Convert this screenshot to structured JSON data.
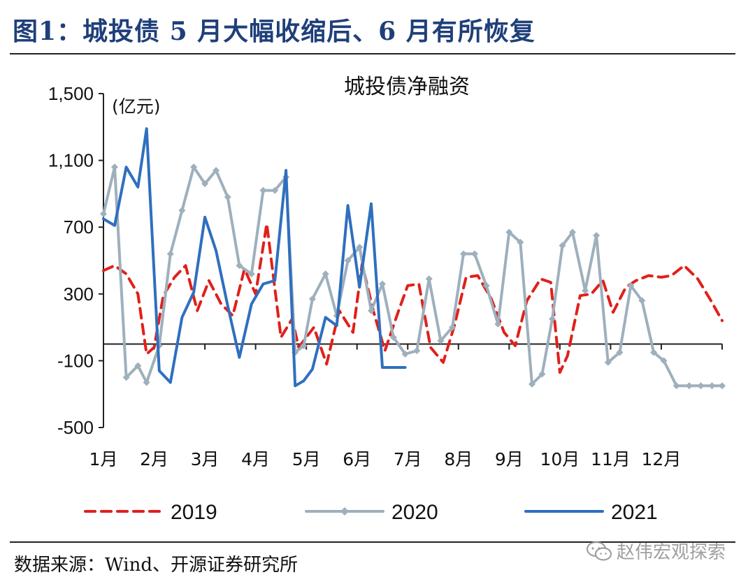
{
  "header": {
    "figure_title": "图1：城投债 5 月大幅收缩后、6 月有所恢复"
  },
  "footer": {
    "source": "数据来源：Wind、开源证券研究所",
    "watermark": "赵伟宏观探索"
  },
  "chart_data": {
    "type": "line",
    "title": "城投债净融资",
    "unit": "(亿元)",
    "ylim": [
      -500,
      1500
    ],
    "yticks": [
      -500,
      -100,
      300,
      700,
      1100,
      1500
    ],
    "ytick_labels": [
      "-500",
      "-100",
      "300",
      "700",
      "1,100",
      "1,500"
    ],
    "xlim": [
      1,
      13.2
    ],
    "xticks": [
      {
        "pos": 1,
        "label": "1月"
      },
      {
        "pos": 2,
        "label": "2月"
      },
      {
        "pos": 3,
        "label": "3月"
      },
      {
        "pos": 4,
        "label": "4月"
      },
      {
        "pos": 5,
        "label": "5月"
      },
      {
        "pos": 6,
        "label": "6月"
      },
      {
        "pos": 7,
        "label": "7月"
      },
      {
        "pos": 8,
        "label": "8月"
      },
      {
        "pos": 9,
        "label": "9月"
      },
      {
        "pos": 10,
        "label": "10月"
      },
      {
        "pos": 11,
        "label": "11月"
      },
      {
        "pos": 12,
        "label": "12月"
      }
    ],
    "grid": false,
    "legend_position": "bottom",
    "series": [
      {
        "name": "2019",
        "color": "#e0201b",
        "style": "dashed",
        "x": [
          1.0,
          1.22,
          1.45,
          1.68,
          1.85,
          2.0,
          2.18,
          2.4,
          2.62,
          2.85,
          3.08,
          3.32,
          3.55,
          3.78,
          4.0,
          4.22,
          4.5,
          4.72,
          4.85,
          4.95,
          5.15,
          5.4,
          5.65,
          5.92,
          6.1,
          6.33,
          6.55,
          6.82,
          7.0,
          7.22,
          7.45,
          7.7,
          7.92,
          8.15,
          8.38,
          8.65,
          8.9,
          9.12,
          9.35,
          9.62,
          9.82,
          10.0,
          10.15,
          10.4,
          10.62,
          10.85,
          11.05,
          11.3,
          11.5,
          11.75,
          12.0,
          12.2,
          12.45,
          12.72,
          12.98,
          13.2
        ],
        "y": [
          440,
          470,
          420,
          300,
          -60,
          -20,
          290,
          400,
          470,
          200,
          380,
          240,
          170,
          450,
          300,
          720,
          40,
          150,
          -20,
          20,
          100,
          -120,
          200,
          70,
          480,
          190,
          -40,
          200,
          350,
          360,
          -20,
          -110,
          110,
          400,
          410,
          270,
          70,
          -10,
          260,
          390,
          370,
          -170,
          -70,
          290,
          300,
          380,
          190,
          340,
          380,
          410,
          400,
          410,
          470,
          390,
          260,
          140
        ]
      },
      {
        "name": "2020",
        "color": "#9eb0bc",
        "style": "solid",
        "marker": "diamond",
        "x": [
          1.0,
          1.22,
          1.45,
          1.68,
          1.85,
          2.1,
          2.32,
          2.55,
          2.78,
          3.0,
          3.22,
          3.45,
          3.68,
          3.92,
          4.15,
          4.38,
          4.6,
          4.78,
          4.95,
          5.12,
          5.38,
          5.6,
          5.82,
          6.05,
          6.28,
          6.5,
          6.72,
          6.95,
          7.18,
          7.42,
          7.65,
          7.88,
          8.1,
          8.32,
          8.55,
          8.78,
          9.0,
          9.22,
          9.45,
          9.65,
          9.85,
          10.05,
          10.25,
          10.5,
          10.72,
          10.95,
          11.18,
          11.4,
          11.62,
          11.85,
          12.05,
          12.3,
          12.55,
          12.78,
          13.0,
          13.2
        ],
        "y": [
          780,
          1060,
          -200,
          -130,
          -230,
          -10,
          540,
          800,
          1060,
          960,
          1040,
          880,
          470,
          420,
          920,
          920,
          1000,
          -50,
          -10,
          270,
          420,
          170,
          500,
          580,
          200,
          360,
          40,
          -60,
          -40,
          390,
          20,
          100,
          540,
          540,
          350,
          120,
          670,
          610,
          -240,
          -180,
          150,
          590,
          670,
          320,
          650,
          -110,
          -50,
          350,
          260,
          -50,
          -100,
          -250,
          -250,
          -250,
          -250,
          -250
        ]
      },
      {
        "name": "2021",
        "color": "#2f6fbf",
        "style": "solid",
        "x": [
          1.0,
          1.22,
          1.45,
          1.68,
          1.85,
          2.1,
          2.32,
          2.55,
          2.78,
          3.0,
          3.22,
          3.45,
          3.68,
          3.92,
          4.15,
          4.38,
          4.6,
          4.78,
          4.95,
          5.12,
          5.38,
          5.6,
          5.82,
          6.05,
          6.28,
          6.5,
          6.72,
          6.95
        ],
        "y": [
          750,
          710,
          1060,
          940,
          1290,
          -160,
          -230,
          160,
          310,
          760,
          560,
          230,
          -80,
          240,
          360,
          380,
          1040,
          -250,
          -220,
          -150,
          160,
          110,
          830,
          340,
          840,
          -140,
          -140,
          -140
        ]
      }
    ]
  }
}
